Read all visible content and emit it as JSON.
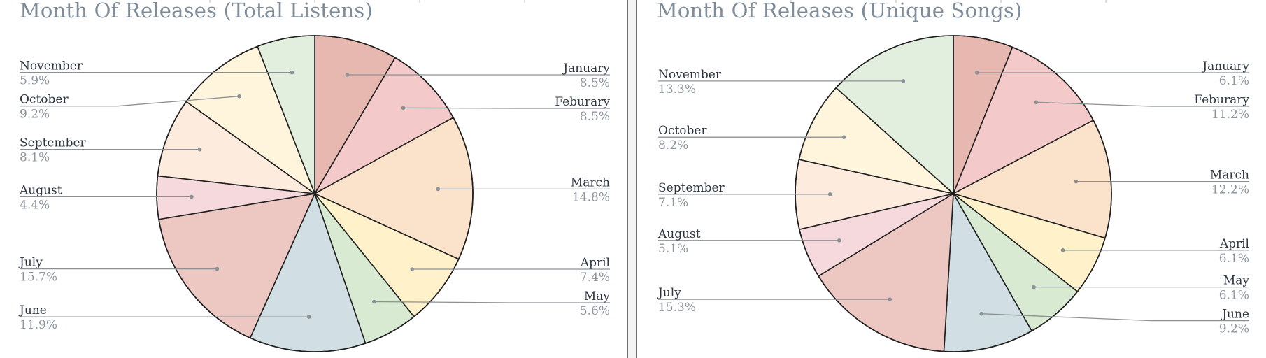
{
  "colors": {
    "slices": [
      "#e6b8b0",
      "#f3c9c9",
      "#fbe3cb",
      "#fff2cb",
      "#d9ead2",
      "#d1dfe4",
      "#edc8c2",
      "#f6d9dc",
      "#fdebdd",
      "#fff5dc",
      "#e3efde"
    ],
    "leader": "#8c9196",
    "title": "#7f8c99"
  },
  "chart_data": [
    {
      "type": "pie",
      "title": "Month Of Releases (Total Listens)",
      "categories": [
        "January",
        "Feburary",
        "March",
        "April",
        "May",
        "June",
        "July",
        "August",
        "September",
        "October",
        "November"
      ],
      "values": [
        8.5,
        8.5,
        14.8,
        7.4,
        5.6,
        11.9,
        15.7,
        4.4,
        8.1,
        9.2,
        5.9
      ],
      "labels": [
        "8.5%",
        "8.5%",
        "14.8%",
        "7.4%",
        "5.6%",
        "11.9%",
        "15.7%",
        "4.4%",
        "8.1%",
        "9.2%",
        "5.9%"
      ],
      "start_angle": "12 o'clock",
      "direction": "clockwise",
      "legend": "none",
      "label_position": "outside with leader lines"
    },
    {
      "type": "pie",
      "title": "Month Of Releases (Unique Songs)",
      "categories": [
        "January",
        "Feburary",
        "March",
        "April",
        "May",
        "June",
        "July",
        "August",
        "September",
        "October",
        "November"
      ],
      "values": [
        6.1,
        11.2,
        12.2,
        6.1,
        6.1,
        9.2,
        15.3,
        5.1,
        7.1,
        8.2,
        13.3
      ],
      "labels": [
        "6.1%",
        "11.2%",
        "12.2%",
        "6.1%",
        "6.1%",
        "9.2%",
        "15.3%",
        "5.1%",
        "7.1%",
        "8.2%",
        "13.3%"
      ],
      "start_angle": "12 o'clock",
      "direction": "clockwise",
      "legend": "none",
      "label_position": "outside with leader lines"
    }
  ]
}
